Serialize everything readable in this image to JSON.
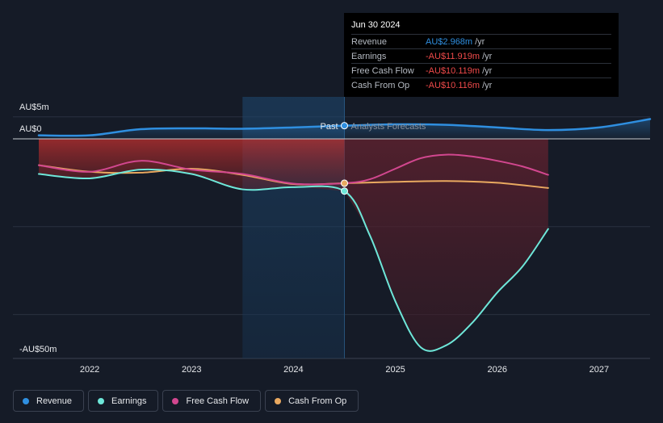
{
  "chart_data": {
    "type": "line",
    "y_unit_labels": {
      "top": "AU$5m",
      "zero": "AU$0",
      "bottom": "-AU$50m"
    },
    "ylim": [
      -50,
      5
    ],
    "x_ticks": [
      "2022",
      "2023",
      "2024",
      "2025",
      "2026",
      "2027"
    ],
    "past_label": "Past",
    "forecast_label": "Analysts Forecasts",
    "divider_x": 2024.5,
    "series": [
      {
        "name": "Revenue",
        "color": "#2f8fe0",
        "x": [
          2021.5,
          2022.0,
          2022.5,
          2023.0,
          2023.5,
          2024.0,
          2024.5,
          2025.0,
          2025.5,
          2026.0,
          2026.5,
          2027.0,
          2027.5
        ],
        "values": [
          0.8,
          0.8,
          2.2,
          2.4,
          2.3,
          2.6,
          3.0,
          3.3,
          3.2,
          2.6,
          2.0,
          2.6,
          4.5
        ]
      },
      {
        "name": "Earnings",
        "color": "#6ee7d9",
        "x": [
          2021.5,
          2022.0,
          2022.5,
          2023.0,
          2023.5,
          2024.0,
          2024.5,
          2024.75,
          2025.0,
          2025.25,
          2025.5,
          2025.75,
          2026.0,
          2026.25,
          2026.5
        ],
        "values": [
          -8.0,
          -9.0,
          -7.0,
          -8.0,
          -11.5,
          -11.0,
          -11.9,
          -22.0,
          -37.0,
          -47.5,
          -47.0,
          -42.0,
          -35.0,
          -29.0,
          -20.5
        ]
      },
      {
        "name": "Free Cash Flow",
        "color": "#d2478f",
        "x": [
          2021.5,
          2022.0,
          2022.5,
          2023.0,
          2023.5,
          2024.0,
          2024.5,
          2024.75,
          2025.0,
          2025.25,
          2025.5,
          2025.75,
          2026.0,
          2026.25,
          2026.5
        ],
        "values": [
          -6.0,
          -7.5,
          -5.0,
          -7.0,
          -8.0,
          -10.2,
          -10.1,
          -9.2,
          -6.8,
          -4.4,
          -3.6,
          -4.0,
          -5.0,
          -6.3,
          -8.2
        ]
      },
      {
        "name": "Cash From Op",
        "color": "#e9a960",
        "x": [
          2021.5,
          2022.0,
          2022.5,
          2023.0,
          2023.5,
          2024.0,
          2024.5,
          2025.0,
          2025.5,
          2026.0,
          2026.5
        ],
        "values": [
          -6.0,
          -7.5,
          -7.7,
          -6.8,
          -8.2,
          -10.3,
          -10.1,
          -9.8,
          -9.6,
          -10.0,
          -11.2
        ]
      }
    ]
  },
  "tooltip": {
    "date": "Jun 30 2024",
    "rows": [
      {
        "label": "Revenue",
        "value": "AU$2.968m",
        "unit": "/yr",
        "color": "#2f8fe0"
      },
      {
        "label": "Earnings",
        "value": "-AU$11.919m",
        "unit": "/yr",
        "color": "#f04a4a"
      },
      {
        "label": "Free Cash Flow",
        "value": "-AU$10.119m",
        "unit": "/yr",
        "color": "#f04a4a"
      },
      {
        "label": "Cash From Op",
        "value": "-AU$10.116m",
        "unit": "/yr",
        "color": "#f04a4a"
      }
    ]
  },
  "legend": [
    {
      "label": "Revenue",
      "color": "#2f8fe0"
    },
    {
      "label": "Earnings",
      "color": "#6ee7d9"
    },
    {
      "label": "Free Cash Flow",
      "color": "#d2478f"
    },
    {
      "label": "Cash From Op",
      "color": "#e9a960"
    }
  ]
}
